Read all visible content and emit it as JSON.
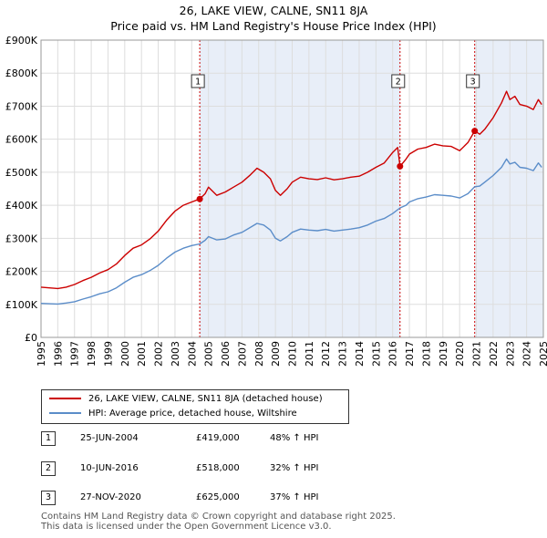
{
  "title": {
    "line1": "26, LAKE VIEW, CALNE, SN11 8JA",
    "line2": "Price paid vs. HM Land Registry's House Price Index (HPI)"
  },
  "colors": {
    "property": "#cc0000",
    "hpi": "#5b8dc9",
    "shade": "#e8eef8",
    "vline": "#cc0000",
    "grid": "#dddddd"
  },
  "chart_data": {
    "type": "line",
    "title": "Price paid vs. HM Land Registry's House Price Index (HPI)",
    "xlabel": "",
    "ylabel": "",
    "xlim": [
      1995,
      2025
    ],
    "ylim": [
      0,
      900000
    ],
    "x_ticks": [
      "1995",
      "1996",
      "1997",
      "1998",
      "1999",
      "2000",
      "2001",
      "2002",
      "2003",
      "2004",
      "2005",
      "2006",
      "2007",
      "2008",
      "2009",
      "2010",
      "2011",
      "2012",
      "2013",
      "2014",
      "2015",
      "2016",
      "2017",
      "2018",
      "2019",
      "2020",
      "2021",
      "2022",
      "2023",
      "2024",
      "2025"
    ],
    "y_ticks": [
      {
        "value": 0,
        "label": "£0"
      },
      {
        "value": 100000,
        "label": "£100K"
      },
      {
        "value": 200000,
        "label": "£200K"
      },
      {
        "value": 300000,
        "label": "£300K"
      },
      {
        "value": 400000,
        "label": "£400K"
      },
      {
        "value": 500000,
        "label": "£500K"
      },
      {
        "value": 600000,
        "label": "£600K"
      },
      {
        "value": 700000,
        "label": "£700K"
      },
      {
        "value": 800000,
        "label": "£800K"
      },
      {
        "value": 900000,
        "label": "£900K"
      }
    ],
    "grid": true,
    "legend_position": "below",
    "series": [
      {
        "name": "26, LAKE VIEW, CALNE, SN11 8JA (detached house)",
        "color": "#cc0000",
        "points": [
          [
            1995.0,
            152000
          ],
          [
            1995.5,
            150000
          ],
          [
            1996.0,
            148000
          ],
          [
            1996.5,
            152000
          ],
          [
            1997.0,
            160000
          ],
          [
            1997.5,
            172000
          ],
          [
            1998.0,
            182000
          ],
          [
            1998.5,
            195000
          ],
          [
            1999.0,
            205000
          ],
          [
            1999.5,
            222000
          ],
          [
            2000.0,
            248000
          ],
          [
            2000.5,
            270000
          ],
          [
            2001.0,
            280000
          ],
          [
            2001.5,
            298000
          ],
          [
            2002.0,
            322000
          ],
          [
            2002.5,
            355000
          ],
          [
            2003.0,
            382000
          ],
          [
            2003.5,
            400000
          ],
          [
            2004.0,
            410000
          ],
          [
            2004.48,
            419000
          ],
          [
            2004.8,
            435000
          ],
          [
            2005.0,
            455000
          ],
          [
            2005.5,
            430000
          ],
          [
            2006.0,
            440000
          ],
          [
            2006.5,
            455000
          ],
          [
            2007.0,
            470000
          ],
          [
            2007.5,
            492000
          ],
          [
            2007.9,
            512000
          ],
          [
            2008.3,
            500000
          ],
          [
            2008.7,
            480000
          ],
          [
            2009.0,
            445000
          ],
          [
            2009.3,
            430000
          ],
          [
            2009.7,
            450000
          ],
          [
            2010.0,
            470000
          ],
          [
            2010.5,
            485000
          ],
          [
            2011.0,
            480000
          ],
          [
            2011.5,
            478000
          ],
          [
            2012.0,
            483000
          ],
          [
            2012.5,
            477000
          ],
          [
            2013.0,
            480000
          ],
          [
            2013.5,
            485000
          ],
          [
            2014.0,
            488000
          ],
          [
            2014.5,
            500000
          ],
          [
            2015.0,
            515000
          ],
          [
            2015.5,
            528000
          ],
          [
            2016.0,
            560000
          ],
          [
            2016.3,
            575000
          ],
          [
            2016.44,
            518000
          ],
          [
            2016.8,
            540000
          ],
          [
            2017.0,
            555000
          ],
          [
            2017.5,
            570000
          ],
          [
            2018.0,
            575000
          ],
          [
            2018.5,
            585000
          ],
          [
            2019.0,
            580000
          ],
          [
            2019.5,
            578000
          ],
          [
            2020.0,
            565000
          ],
          [
            2020.5,
            590000
          ],
          [
            2020.9,
            625000
          ],
          [
            2021.2,
            615000
          ],
          [
            2021.5,
            630000
          ],
          [
            2022.0,
            665000
          ],
          [
            2022.5,
            710000
          ],
          [
            2022.8,
            745000
          ],
          [
            2023.0,
            720000
          ],
          [
            2023.3,
            730000
          ],
          [
            2023.6,
            705000
          ],
          [
            2024.0,
            700000
          ],
          [
            2024.4,
            690000
          ],
          [
            2024.7,
            720000
          ],
          [
            2024.9,
            705000
          ]
        ]
      },
      {
        "name": "HPI: Average price, detached house, Wiltshire",
        "color": "#5b8dc9",
        "points": [
          [
            1995.0,
            103000
          ],
          [
            1995.5,
            102000
          ],
          [
            1996.0,
            101000
          ],
          [
            1996.5,
            104000
          ],
          [
            1997.0,
            108000
          ],
          [
            1997.5,
            116000
          ],
          [
            1998.0,
            123000
          ],
          [
            1998.5,
            132000
          ],
          [
            1999.0,
            138000
          ],
          [
            1999.5,
            150000
          ],
          [
            2000.0,
            167000
          ],
          [
            2000.5,
            182000
          ],
          [
            2001.0,
            190000
          ],
          [
            2001.5,
            202000
          ],
          [
            2002.0,
            218000
          ],
          [
            2002.5,
            240000
          ],
          [
            2003.0,
            258000
          ],
          [
            2003.5,
            270000
          ],
          [
            2004.0,
            278000
          ],
          [
            2004.48,
            283000
          ],
          [
            2004.8,
            294000
          ],
          [
            2005.0,
            305000
          ],
          [
            2005.5,
            295000
          ],
          [
            2006.0,
            298000
          ],
          [
            2006.5,
            310000
          ],
          [
            2007.0,
            318000
          ],
          [
            2007.5,
            333000
          ],
          [
            2007.9,
            345000
          ],
          [
            2008.3,
            340000
          ],
          [
            2008.7,
            325000
          ],
          [
            2009.0,
            300000
          ],
          [
            2009.3,
            292000
          ],
          [
            2009.7,
            305000
          ],
          [
            2010.0,
            318000
          ],
          [
            2010.5,
            328000
          ],
          [
            2011.0,
            325000
          ],
          [
            2011.5,
            323000
          ],
          [
            2012.0,
            327000
          ],
          [
            2012.5,
            322000
          ],
          [
            2013.0,
            325000
          ],
          [
            2013.5,
            328000
          ],
          [
            2014.0,
            332000
          ],
          [
            2014.5,
            340000
          ],
          [
            2015.0,
            352000
          ],
          [
            2015.5,
            360000
          ],
          [
            2016.0,
            375000
          ],
          [
            2016.44,
            392000
          ],
          [
            2016.8,
            400000
          ],
          [
            2017.0,
            410000
          ],
          [
            2017.5,
            420000
          ],
          [
            2018.0,
            425000
          ],
          [
            2018.5,
            432000
          ],
          [
            2019.0,
            430000
          ],
          [
            2019.5,
            428000
          ],
          [
            2020.0,
            422000
          ],
          [
            2020.5,
            435000
          ],
          [
            2020.9,
            456000
          ],
          [
            2021.2,
            458000
          ],
          [
            2021.5,
            470000
          ],
          [
            2022.0,
            490000
          ],
          [
            2022.5,
            515000
          ],
          [
            2022.8,
            540000
          ],
          [
            2023.0,
            525000
          ],
          [
            2023.3,
            530000
          ],
          [
            2023.6,
            515000
          ],
          [
            2024.0,
            512000
          ],
          [
            2024.4,
            505000
          ],
          [
            2024.7,
            528000
          ],
          [
            2024.9,
            515000
          ]
        ]
      }
    ],
    "annotations": [
      {
        "label": "1",
        "x": 2004.48,
        "y": 419000
      },
      {
        "label": "2",
        "x": 2016.44,
        "y": 518000
      },
      {
        "label": "3",
        "x": 2020.9,
        "y": 625000
      }
    ],
    "shaded_ranges": [
      [
        2004.48,
        2016.44
      ],
      [
        2020.9,
        2025
      ]
    ]
  },
  "legend": {
    "property_label": "26, LAKE VIEW, CALNE, SN11 8JA (detached house)",
    "hpi_label": "HPI: Average price, detached house, Wiltshire"
  },
  "sales": [
    {
      "num": "1",
      "date": "25-JUN-2004",
      "price": "£419,000",
      "hpi": "48% ↑ HPI"
    },
    {
      "num": "2",
      "date": "10-JUN-2016",
      "price": "£518,000",
      "hpi": "32% ↑ HPI"
    },
    {
      "num": "3",
      "date": "27-NOV-2020",
      "price": "£625,000",
      "hpi": "37% ↑ HPI"
    }
  ],
  "footer": {
    "line1": "Contains HM Land Registry data © Crown copyright and database right 2025.",
    "line2": "This data is licensed under the Open Government Licence v3.0."
  }
}
